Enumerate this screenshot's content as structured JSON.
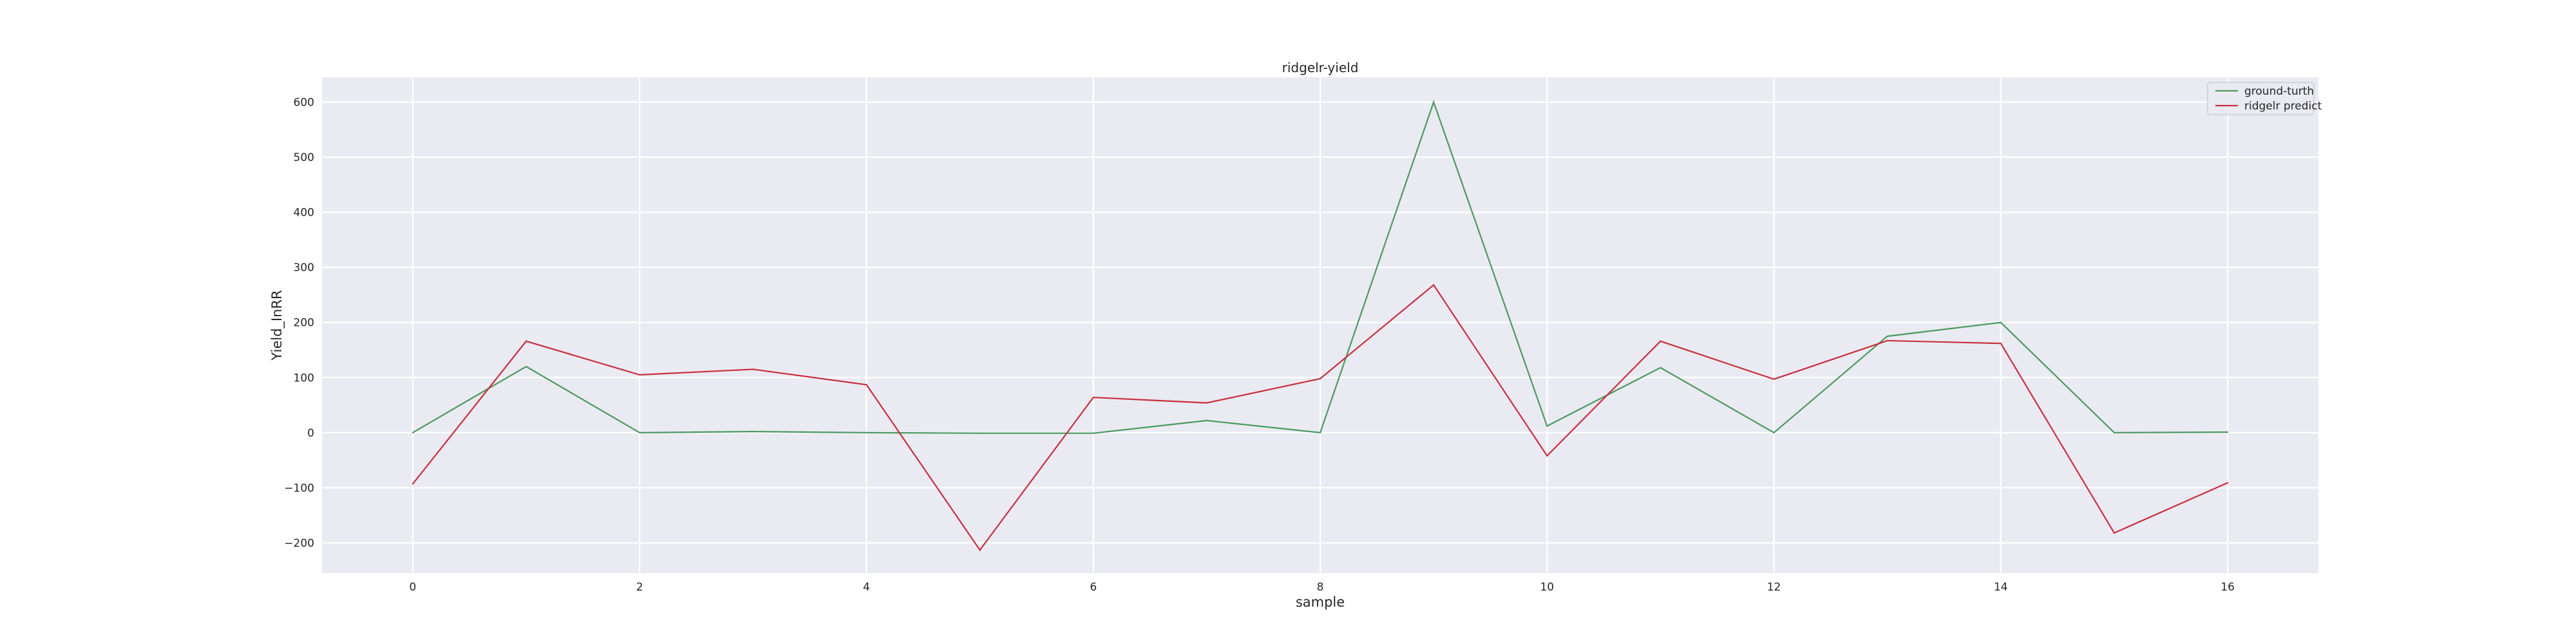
{
  "chart_data": {
    "type": "line",
    "title": "ridgelr-yield",
    "xlabel": "sample",
    "ylabel": "Yield_InRR",
    "x": [
      0,
      1,
      2,
      3,
      4,
      5,
      6,
      7,
      8,
      9,
      10,
      11,
      12,
      13,
      14,
      15,
      16
    ],
    "xlim": [
      -0.8,
      16.8
    ],
    "ylim": [
      -255,
      645
    ],
    "xticks": [
      0,
      2,
      4,
      6,
      8,
      10,
      12,
      14,
      16
    ],
    "yticks": [
      -200,
      -100,
      0,
      100,
      200,
      300,
      400,
      500,
      600
    ],
    "xtick_labels": [
      "0",
      "2",
      "4",
      "6",
      "8",
      "10",
      "12",
      "14",
      "16"
    ],
    "ytick_labels": [
      "−200",
      "−100",
      "0",
      "100",
      "200",
      "300",
      "400",
      "500",
      "600"
    ],
    "grid": true,
    "legend_position": "top-right",
    "series": [
      {
        "name": "ground-turth",
        "color": "#4C9A5E",
        "values": [
          0,
          120,
          0,
          2,
          0,
          -1,
          -1,
          22,
          0,
          600,
          12,
          118,
          0,
          175,
          200,
          0,
          1
        ]
      },
      {
        "name": "ridgelr predict",
        "color": "#C8303D",
        "values": [
          -93,
          166,
          105,
          115,
          87,
          -213,
          64,
          54,
          98,
          268,
          -42,
          166,
          97,
          167,
          162,
          -182,
          -91
        ]
      }
    ]
  }
}
